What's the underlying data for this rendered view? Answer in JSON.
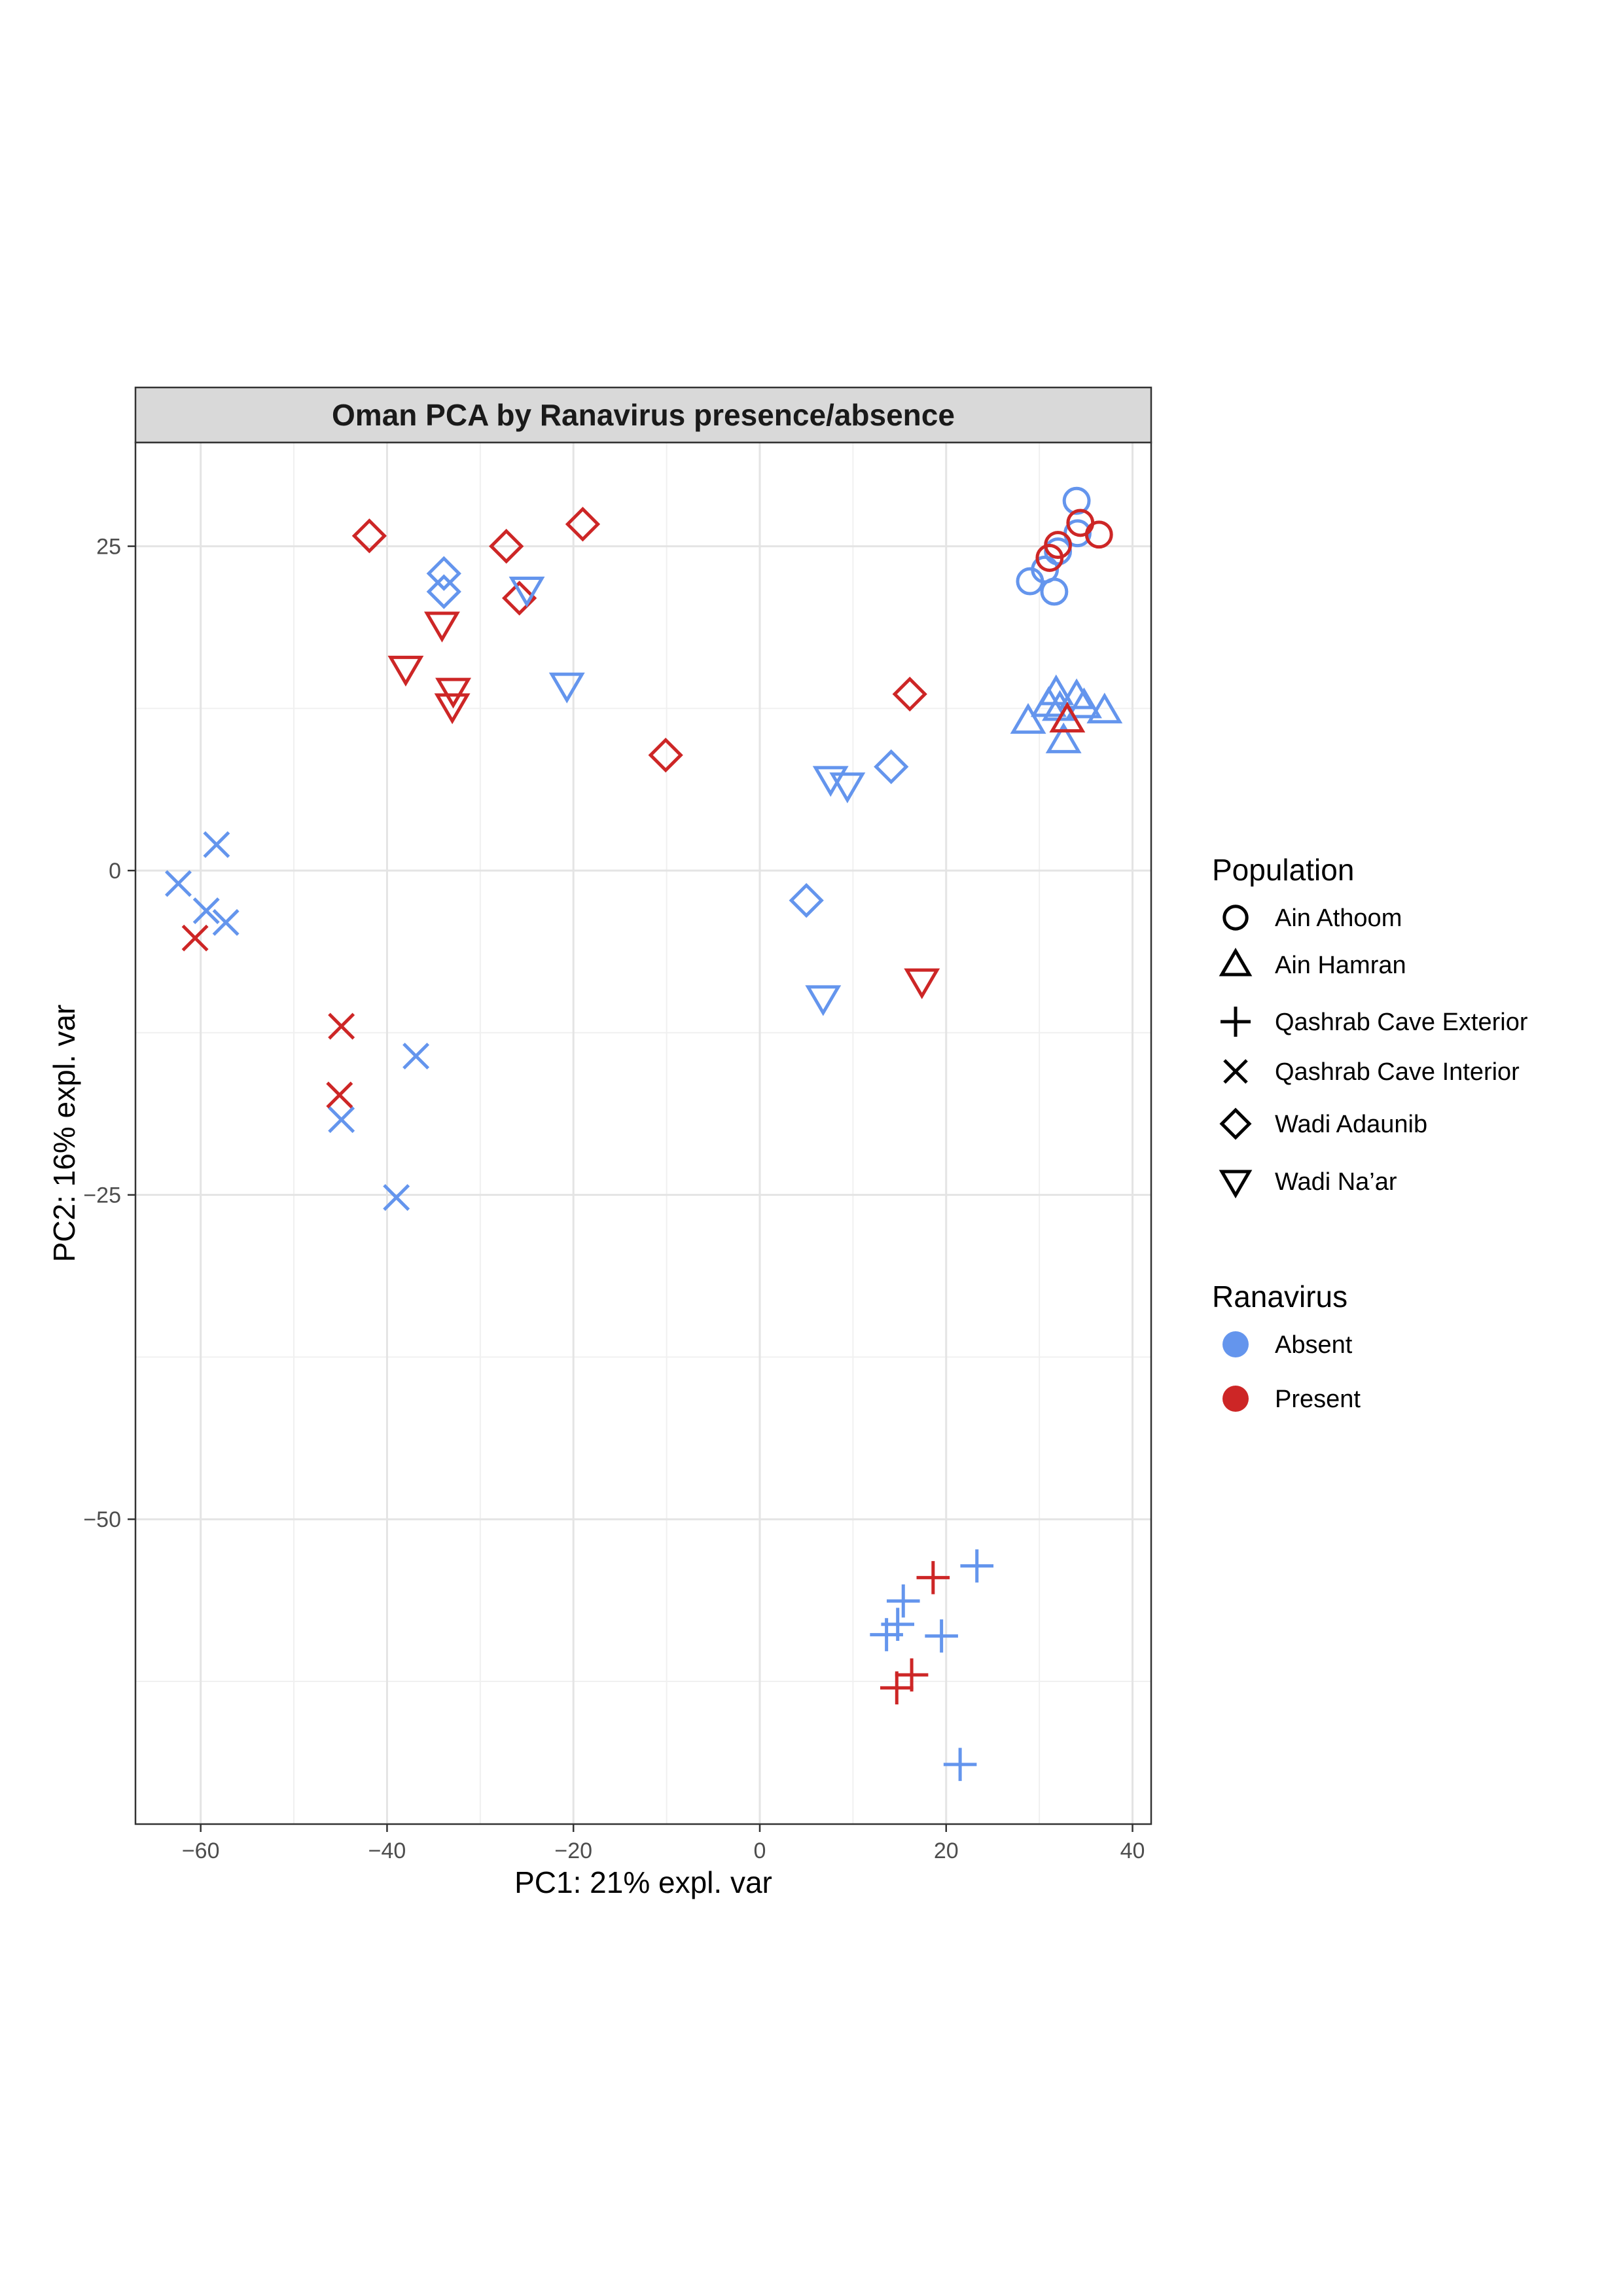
{
  "chart_data": {
    "type": "scatter",
    "title": "Oman PCA by Ranavirus presence/absence",
    "xlabel": "PC1: 21% expl. var",
    "ylabel": "PC2: 16% expl. var",
    "xlim": [
      -67,
      42
    ],
    "ylim": [
      -73.5,
      33
    ],
    "xticks": [
      -60,
      -40,
      -20,
      0,
      20,
      40
    ],
    "xtick_labels": [
      "−60",
      "−40",
      "−20",
      "0",
      "20",
      "40"
    ],
    "yticks": [
      -50,
      -25,
      0,
      25
    ],
    "ytick_labels": [
      "−50",
      "−25",
      "0",
      "25"
    ],
    "grid": true,
    "legend_position": "right",
    "legends": {
      "population": {
        "title": "Population",
        "entries": [
          {
            "label": "Ain Athoom",
            "shape": "circle"
          },
          {
            "label": "Ain Hamran",
            "shape": "triangle"
          },
          {
            "label": "Qashrab Cave Exterior",
            "shape": "plus"
          },
          {
            "label": "Qashrab Cave Interior",
            "shape": "cross"
          },
          {
            "label": "Wadi Adaunib",
            "shape": "diamond"
          },
          {
            "label": "Wadi Na’ar",
            "shape": "triangle-down"
          }
        ]
      },
      "ranavirus": {
        "title": "Ranavirus",
        "entries": [
          {
            "label": "Absent",
            "color": "#6495ED"
          },
          {
            "label": "Present",
            "color": "#CD2626"
          }
        ]
      }
    },
    "points": [
      {
        "x": 34.0,
        "y": 28.5,
        "population": "Ain Athoom",
        "ranavirus": "Absent"
      },
      {
        "x": 34.1,
        "y": 26.0,
        "population": "Ain Athoom",
        "ranavirus": "Absent"
      },
      {
        "x": 32.0,
        "y": 24.6,
        "population": "Ain Athoom",
        "ranavirus": "Absent"
      },
      {
        "x": 30.6,
        "y": 23.2,
        "population": "Ain Athoom",
        "ranavirus": "Absent"
      },
      {
        "x": 29.0,
        "y": 22.3,
        "population": "Ain Athoom",
        "ranavirus": "Absent"
      },
      {
        "x": 31.6,
        "y": 21.5,
        "population": "Ain Athoom",
        "ranavirus": "Absent"
      },
      {
        "x": 34.4,
        "y": 26.8,
        "population": "Ain Athoom",
        "ranavirus": "Present"
      },
      {
        "x": 36.4,
        "y": 25.9,
        "population": "Ain Athoom",
        "ranavirus": "Present"
      },
      {
        "x": 32.0,
        "y": 25.1,
        "population": "Ain Athoom",
        "ranavirus": "Present"
      },
      {
        "x": 31.1,
        "y": 24.1,
        "population": "Ain Athoom",
        "ranavirus": "Present"
      },
      {
        "x": 31.8,
        "y": 13.7,
        "population": "Ain Hamran",
        "ranavirus": "Absent"
      },
      {
        "x": 34.0,
        "y": 13.4,
        "population": "Ain Hamran",
        "ranavirus": "Absent"
      },
      {
        "x": 31.0,
        "y": 12.8,
        "population": "Ain Hamran",
        "ranavirus": "Absent"
      },
      {
        "x": 32.2,
        "y": 12.5,
        "population": "Ain Hamran",
        "ranavirus": "Absent"
      },
      {
        "x": 34.8,
        "y": 12.7,
        "population": "Ain Hamran",
        "ranavirus": "Absent"
      },
      {
        "x": 37.0,
        "y": 12.3,
        "population": "Ain Hamran",
        "ranavirus": "Absent"
      },
      {
        "x": 28.8,
        "y": 11.5,
        "population": "Ain Hamran",
        "ranavirus": "Absent"
      },
      {
        "x": 32.6,
        "y": 10.0,
        "population": "Ain Hamran",
        "ranavirus": "Absent"
      },
      {
        "x": 33.0,
        "y": 11.6,
        "population": "Ain Hamran",
        "ranavirus": "Present"
      },
      {
        "x": 23.3,
        "y": -53.6,
        "population": "Qashrab Cave Exterior",
        "ranavirus": "Absent"
      },
      {
        "x": 15.4,
        "y": -56.3,
        "population": "Qashrab Cave Exterior",
        "ranavirus": "Absent"
      },
      {
        "x": 14.8,
        "y": -58.1,
        "population": "Qashrab Cave Exterior",
        "ranavirus": "Absent"
      },
      {
        "x": 13.6,
        "y": -58.9,
        "population": "Qashrab Cave Exterior",
        "ranavirus": "Absent"
      },
      {
        "x": 19.5,
        "y": -59.0,
        "population": "Qashrab Cave Exterior",
        "ranavirus": "Absent"
      },
      {
        "x": 21.5,
        "y": -68.9,
        "population": "Qashrab Cave Exterior",
        "ranavirus": "Absent"
      },
      {
        "x": 18.6,
        "y": -54.5,
        "population": "Qashrab Cave Exterior",
        "ranavirus": "Present"
      },
      {
        "x": 16.3,
        "y": -62.0,
        "population": "Qashrab Cave Exterior",
        "ranavirus": "Present"
      },
      {
        "x": 14.7,
        "y": -63.0,
        "population": "Qashrab Cave Exterior",
        "ranavirus": "Present"
      },
      {
        "x": -58.3,
        "y": 2.0,
        "population": "Qashrab Cave Interior",
        "ranavirus": "Absent"
      },
      {
        "x": -62.4,
        "y": -1.0,
        "population": "Qashrab Cave Interior",
        "ranavirus": "Absent"
      },
      {
        "x": -59.4,
        "y": -3.1,
        "population": "Qashrab Cave Interior",
        "ranavirus": "Absent"
      },
      {
        "x": -57.3,
        "y": -4.0,
        "population": "Qashrab Cave Interior",
        "ranavirus": "Absent"
      },
      {
        "x": -36.9,
        "y": -14.3,
        "population": "Qashrab Cave Interior",
        "ranavirus": "Absent"
      },
      {
        "x": -44.9,
        "y": -19.2,
        "population": "Qashrab Cave Interior",
        "ranavirus": "Absent"
      },
      {
        "x": -39.0,
        "y": -25.2,
        "population": "Qashrab Cave Interior",
        "ranavirus": "Absent"
      },
      {
        "x": -60.6,
        "y": -5.2,
        "population": "Qashrab Cave Interior",
        "ranavirus": "Present"
      },
      {
        "x": -44.9,
        "y": -12.0,
        "population": "Qashrab Cave Interior",
        "ranavirus": "Present"
      },
      {
        "x": -45.1,
        "y": -17.3,
        "population": "Qashrab Cave Interior",
        "ranavirus": "Present"
      },
      {
        "x": -33.9,
        "y": 22.9,
        "population": "Wadi Adaunib",
        "ranavirus": "Absent"
      },
      {
        "x": -33.9,
        "y": 21.5,
        "population": "Wadi Adaunib",
        "ranavirus": "Absent"
      },
      {
        "x": 14.1,
        "y": 8.0,
        "population": "Wadi Adaunib",
        "ranavirus": "Absent"
      },
      {
        "x": 5.0,
        "y": -2.3,
        "population": "Wadi Adaunib",
        "ranavirus": "Absent"
      },
      {
        "x": -41.9,
        "y": 25.8,
        "population": "Wadi Adaunib",
        "ranavirus": "Present"
      },
      {
        "x": -27.2,
        "y": 25.0,
        "population": "Wadi Adaunib",
        "ranavirus": "Present"
      },
      {
        "x": -19.0,
        "y": 26.7,
        "population": "Wadi Adaunib",
        "ranavirus": "Present"
      },
      {
        "x": -25.8,
        "y": 21.0,
        "population": "Wadi Adaunib",
        "ranavirus": "Present"
      },
      {
        "x": 16.1,
        "y": 13.6,
        "population": "Wadi Adaunib",
        "ranavirus": "Present"
      },
      {
        "x": -10.1,
        "y": 8.9,
        "population": "Wadi Adaunib",
        "ranavirus": "Present"
      },
      {
        "x": -25.0,
        "y": 21.7,
        "population": "Wadi Na’ar",
        "ranavirus": "Absent"
      },
      {
        "x": -20.7,
        "y": 14.3,
        "population": "Wadi Na’ar",
        "ranavirus": "Absent"
      },
      {
        "x": 7.6,
        "y": 7.1,
        "population": "Wadi Na’ar",
        "ranavirus": "Absent"
      },
      {
        "x": 9.4,
        "y": 6.6,
        "population": "Wadi Na’ar",
        "ranavirus": "Absent"
      },
      {
        "x": 6.8,
        "y": -9.8,
        "population": "Wadi Na’ar",
        "ranavirus": "Absent"
      },
      {
        "x": -34.1,
        "y": 19.0,
        "population": "Wadi Na’ar",
        "ranavirus": "Present"
      },
      {
        "x": -38.0,
        "y": 15.6,
        "population": "Wadi Na’ar",
        "ranavirus": "Present"
      },
      {
        "x": -32.9,
        "y": 13.9,
        "population": "Wadi Na’ar",
        "ranavirus": "Present"
      },
      {
        "x": -33.0,
        "y": 12.7,
        "population": "Wadi Na’ar",
        "ranavirus": "Present"
      },
      {
        "x": 17.4,
        "y": -8.5,
        "population": "Wadi Na’ar",
        "ranavirus": "Present"
      }
    ]
  }
}
